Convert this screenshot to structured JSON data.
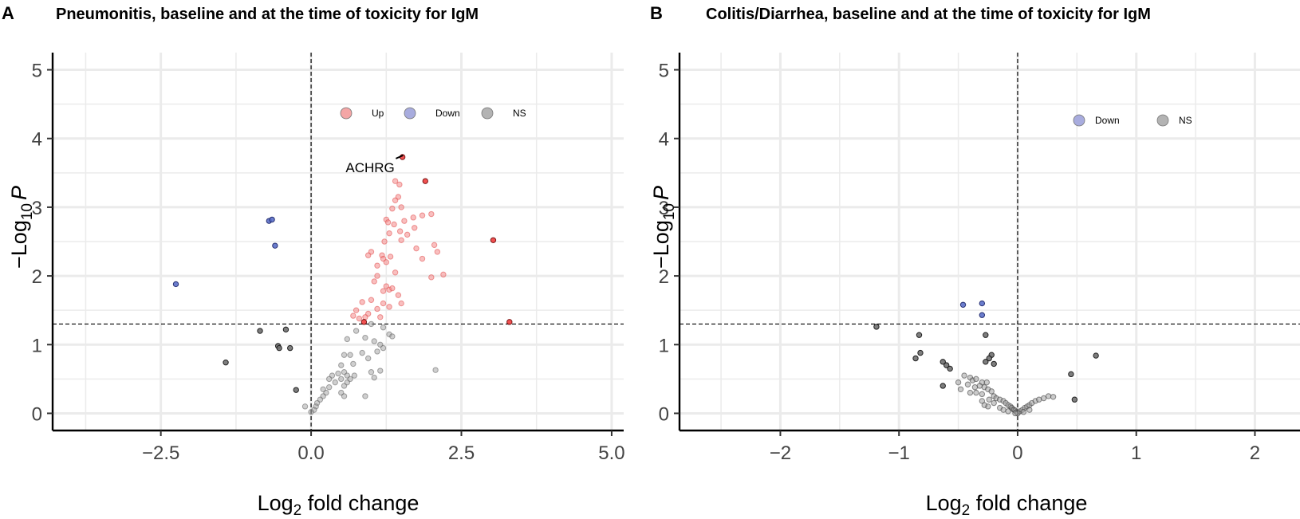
{
  "chart_data": [
    {
      "type": "scatter",
      "panel": "A",
      "title": "Pneumonitis, baseline and at the time of toxicity for IgM",
      "xlabel_main": "Log",
      "xlabel_sub": "2",
      "xlabel_rest": " fold change",
      "ylabel_prefix": "−Log",
      "ylabel_sub": "10",
      "ylabel_rest": "P",
      "xlim": [
        -4.3,
        5.2
      ],
      "ylim": [
        -0.25,
        5.25
      ],
      "x_ticks": [
        -2.5,
        0.0,
        2.5,
        5.0
      ],
      "x_tick_labels": [
        "−2.5",
        "0.0",
        "2.5",
        "5.0"
      ],
      "y_ticks": [
        0,
        1,
        2,
        3,
        4,
        5
      ],
      "y_tick_labels": [
        "0",
        "1",
        "2",
        "3",
        "4",
        "5"
      ],
      "p_threshold": 1.3,
      "fc_threshold": 0,
      "legend": [
        {
          "label": "Up",
          "color": "#f4a6a6"
        },
        {
          "label": "Down",
          "color": "#a8acde"
        },
        {
          "label": "NS",
          "color": "#b3b3b3"
        }
      ],
      "annotations": [
        {
          "label": "ACHRG",
          "x": 1.45,
          "y": 3.72
        }
      ],
      "series": [
        {
          "name": "Up-light",
          "color": "#f48a8a",
          "stroke": "#e04a4a",
          "opacity": 0.55,
          "points": [
            [
              1.4,
              3.38
            ],
            [
              1.47,
              3.33
            ],
            [
              1.45,
              3.15
            ],
            [
              1.4,
              3.1
            ],
            [
              1.35,
              2.98
            ],
            [
              1.5,
              3.0
            ],
            [
              1.25,
              2.82
            ],
            [
              1.28,
              2.78
            ],
            [
              1.38,
              2.75
            ],
            [
              1.55,
              2.8
            ],
            [
              1.7,
              2.85
            ],
            [
              1.85,
              2.88
            ],
            [
              2.0,
              2.9
            ],
            [
              1.3,
              2.62
            ],
            [
              1.48,
              2.65
            ],
            [
              1.6,
              2.6
            ],
            [
              1.72,
              2.7
            ],
            [
              1.22,
              2.5
            ],
            [
              1.5,
              2.52
            ],
            [
              1.0,
              2.35
            ],
            [
              1.18,
              2.3
            ],
            [
              1.2,
              2.25
            ],
            [
              1.25,
              2.2
            ],
            [
              1.32,
              2.28
            ],
            [
              0.95,
              2.3
            ],
            [
              1.1,
              2.15
            ],
            [
              1.4,
              2.05
            ],
            [
              1.75,
              2.4
            ],
            [
              1.85,
              2.25
            ],
            [
              2.05,
              2.45
            ],
            [
              2.1,
              2.35
            ],
            [
              1.1,
              2.0
            ],
            [
              1.05,
              1.92
            ],
            [
              1.25,
              1.85
            ],
            [
              1.3,
              1.8
            ],
            [
              1.35,
              1.82
            ],
            [
              1.2,
              1.78
            ],
            [
              1.45,
              1.72
            ],
            [
              1.5,
              1.6
            ],
            [
              1.3,
              1.55
            ],
            [
              0.85,
              1.62
            ],
            [
              1.0,
              1.65
            ],
            [
              1.1,
              1.52
            ],
            [
              0.75,
              1.5
            ],
            [
              0.7,
              1.42
            ],
            [
              0.95,
              1.45
            ],
            [
              0.8,
              1.38
            ],
            [
              0.9,
              1.4
            ],
            [
              1.2,
              1.6
            ],
            [
              1.15,
              1.4
            ],
            [
              2.0,
              1.98
            ],
            [
              2.2,
              2.02
            ]
          ]
        },
        {
          "name": "Up-strong",
          "color": "#ee3333",
          "stroke": "#660000",
          "opacity": 0.85,
          "points": [
            [
              1.52,
              3.73
            ],
            [
              1.9,
              3.38
            ],
            [
              3.03,
              2.52
            ],
            [
              3.3,
              1.33
            ],
            [
              0.88,
              1.33
            ]
          ]
        },
        {
          "name": "Down",
          "color": "#5b6fc8",
          "stroke": "#1a2266",
          "opacity": 0.9,
          "points": [
            [
              -0.7,
              2.8
            ],
            [
              -0.65,
              2.82
            ],
            [
              -0.6,
              2.44
            ],
            [
              -2.25,
              1.88
            ]
          ]
        },
        {
          "name": "NS-strong",
          "color": "#707070",
          "stroke": "#111111",
          "opacity": 0.9,
          "points": [
            [
              -0.85,
              1.2
            ],
            [
              -0.42,
              1.22
            ],
            [
              -0.55,
              0.98
            ],
            [
              -0.53,
              0.95
            ],
            [
              -0.35,
              0.95
            ],
            [
              -1.42,
              0.74
            ],
            [
              -0.25,
              0.34
            ]
          ]
        },
        {
          "name": "NS-light",
          "color": "#a0a0a0",
          "stroke": "#555555",
          "opacity": 0.5,
          "points": [
            [
              1.0,
              1.3
            ],
            [
              1.2,
              1.25
            ],
            [
              1.3,
              1.15
            ],
            [
              1.35,
              1.12
            ],
            [
              1.05,
              1.05
            ],
            [
              1.15,
              1.0
            ],
            [
              0.9,
              1.1
            ],
            [
              0.75,
              1.2
            ],
            [
              0.6,
              1.08
            ],
            [
              0.55,
              0.85
            ],
            [
              0.65,
              0.85
            ],
            [
              0.85,
              0.88
            ],
            [
              0.95,
              0.8
            ],
            [
              1.1,
              0.9
            ],
            [
              1.2,
              0.95
            ],
            [
              0.7,
              0.72
            ],
            [
              0.5,
              0.7
            ],
            [
              0.55,
              0.6
            ],
            [
              0.45,
              0.58
            ],
            [
              0.35,
              0.55
            ],
            [
              0.3,
              0.5
            ],
            [
              0.4,
              0.45
            ],
            [
              0.5,
              0.5
            ],
            [
              0.55,
              0.4
            ],
            [
              0.6,
              0.45
            ],
            [
              0.65,
              0.5
            ],
            [
              0.72,
              0.55
            ],
            [
              1.05,
              0.52
            ],
            [
              1.0,
              0.6
            ],
            [
              1.15,
              0.62
            ],
            [
              0.3,
              0.38
            ],
            [
              0.25,
              0.3
            ],
            [
              0.2,
              0.25
            ],
            [
              0.15,
              0.2
            ],
            [
              0.1,
              0.15
            ],
            [
              0.08,
              0.1
            ],
            [
              -0.1,
              0.1
            ],
            [
              0.05,
              0.05
            ],
            [
              0.0,
              0.02
            ],
            [
              0.5,
              0.3
            ],
            [
              0.55,
              0.25
            ],
            [
              2.07,
              0.63
            ],
            [
              0.9,
              0.25
            ],
            [
              0.2,
              0.35
            ],
            [
              0.6,
              0.55
            ]
          ]
        }
      ]
    },
    {
      "type": "scatter",
      "panel": "B",
      "title": "Colitis/Diarrhea, baseline and at the time of toxicity for IgM",
      "xlabel_main": "Log",
      "xlabel_sub": "2",
      "xlabel_rest": " fold change",
      "ylabel_prefix": "−Log",
      "ylabel_sub": "10",
      "ylabel_rest": "P",
      "xlim": [
        -2.85,
        2.38
      ],
      "ylim": [
        -0.25,
        5.25
      ],
      "x_ticks": [
        -2,
        -1,
        0,
        1,
        2
      ],
      "x_tick_labels": [
        "−2",
        "−1",
        "0",
        "1",
        "2"
      ],
      "y_ticks": [
        0,
        1,
        2,
        3,
        4,
        5
      ],
      "y_tick_labels": [
        "0",
        "1",
        "2",
        "3",
        "4",
        "5"
      ],
      "p_threshold": 1.3,
      "fc_threshold": 0,
      "legend": [
        {
          "label": "Down",
          "color": "#a8acde"
        },
        {
          "label": "NS",
          "color": "#b3b3b3"
        }
      ],
      "annotations": [],
      "series": [
        {
          "name": "Down",
          "color": "#5b6fc8",
          "stroke": "#1a2266",
          "opacity": 0.9,
          "points": [
            [
              -0.46,
              1.58
            ],
            [
              -0.3,
              1.6
            ],
            [
              -0.3,
              1.43
            ]
          ]
        },
        {
          "name": "NS-strong",
          "color": "#707070",
          "stroke": "#111111",
          "opacity": 0.9,
          "points": [
            [
              -1.19,
              1.26
            ],
            [
              -0.83,
              1.14
            ],
            [
              -0.27,
              1.14
            ],
            [
              -0.82,
              0.88
            ],
            [
              -0.86,
              0.8
            ],
            [
              -0.22,
              0.85
            ],
            [
              -0.24,
              0.8
            ],
            [
              -0.27,
              0.75
            ],
            [
              -0.2,
              0.72
            ],
            [
              -0.63,
              0.75
            ],
            [
              -0.6,
              0.7
            ],
            [
              -0.57,
              0.65
            ],
            [
              -0.63,
              0.4
            ],
            [
              0.45,
              0.57
            ],
            [
              0.66,
              0.84
            ],
            [
              0.48,
              0.2
            ]
          ]
        },
        {
          "name": "NS-light",
          "color": "#a0a0a0",
          "stroke": "#333333",
          "opacity": 0.55,
          "points": [
            [
              -0.45,
              0.55
            ],
            [
              -0.4,
              0.52
            ],
            [
              -0.38,
              0.48
            ],
            [
              -0.35,
              0.5
            ],
            [
              -0.3,
              0.45
            ],
            [
              -0.42,
              0.42
            ],
            [
              -0.32,
              0.4
            ],
            [
              -0.28,
              0.38
            ],
            [
              -0.25,
              0.35
            ],
            [
              -0.22,
              0.32
            ],
            [
              -0.35,
              0.3
            ],
            [
              -0.3,
              0.28
            ],
            [
              -0.2,
              0.25
            ],
            [
              -0.18,
              0.22
            ],
            [
              -0.15,
              0.2
            ],
            [
              -0.12,
              0.18
            ],
            [
              -0.1,
              0.15
            ],
            [
              -0.08,
              0.12
            ],
            [
              -0.06,
              0.1
            ],
            [
              -0.05,
              0.08
            ],
            [
              -0.04,
              0.06
            ],
            [
              -0.03,
              0.05
            ],
            [
              -0.02,
              0.04
            ],
            [
              -0.01,
              0.02
            ],
            [
              0.0,
              0.01
            ],
            [
              0.02,
              0.03
            ],
            [
              0.04,
              0.05
            ],
            [
              0.06,
              0.08
            ],
            [
              0.08,
              0.1
            ],
            [
              0.1,
              0.12
            ],
            [
              0.12,
              0.15
            ],
            [
              0.15,
              0.18
            ],
            [
              0.18,
              0.2
            ],
            [
              0.22,
              0.22
            ],
            [
              0.26,
              0.25
            ],
            [
              0.3,
              0.24
            ],
            [
              0.05,
              0.02
            ],
            [
              -0.25,
              0.1
            ],
            [
              -0.2,
              0.15
            ],
            [
              -0.15,
              0.08
            ],
            [
              -0.12,
              0.05
            ],
            [
              -0.08,
              0.03
            ],
            [
              -0.28,
              0.12
            ],
            [
              -0.4,
              0.3
            ],
            [
              -0.48,
              0.35
            ],
            [
              -0.5,
              0.45
            ],
            [
              -0.36,
              0.38
            ],
            [
              -0.26,
              0.45
            ],
            [
              -0.24,
              0.2
            ],
            [
              -0.3,
              0.18
            ],
            [
              0.1,
              0.05
            ],
            [
              0.0,
              0.0
            ],
            [
              -0.02,
              0.0
            ]
          ]
        }
      ]
    }
  ]
}
